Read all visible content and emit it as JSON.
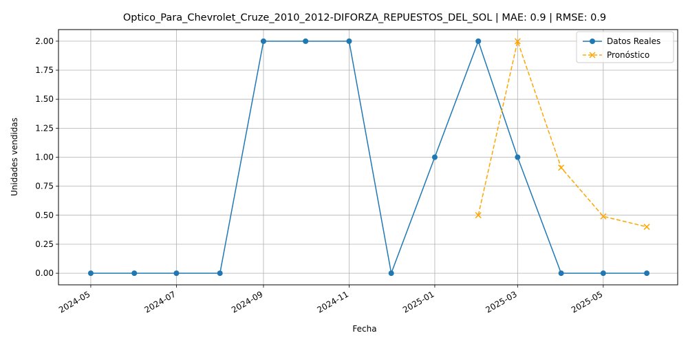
{
  "chart_data": {
    "type": "line",
    "title": "Optico_Para_Chevrolet_Cruze_2010_2012-DIFORZA_REPUESTOS_DEL_SOL | MAE: 0.9 | RMSE: 0.9",
    "xlabel": "Fecha",
    "ylabel": "Unidades vendidas",
    "ylim": [
      -0.1,
      2.1
    ],
    "xlim": [
      "2024-04-08",
      "2025-06-23"
    ],
    "grid": true,
    "legend_position": "top-right",
    "x_ticks": [
      "2024-05",
      "2024-07",
      "2024-09",
      "2024-11",
      "2025-01",
      "2025-03",
      "2025-05"
    ],
    "x_tick_dates": [
      "2024-05-01",
      "2024-07-01",
      "2024-09-01",
      "2024-11-01",
      "2025-01-01",
      "2025-03-01",
      "2025-05-01"
    ],
    "y_ticks": [
      "0.00",
      "0.25",
      "0.50",
      "0.75",
      "1.00",
      "1.25",
      "1.50",
      "1.75",
      "2.00"
    ],
    "y_tick_values": [
      0,
      0.25,
      0.5,
      0.75,
      1.0,
      1.25,
      1.5,
      1.75,
      2.0
    ],
    "series": [
      {
        "name": "Datos Reales",
        "color": "#1f77b4",
        "marker": "circle",
        "line_style": "solid",
        "x": [
          "2024-05-01",
          "2024-06-01",
          "2024-07-01",
          "2024-08-01",
          "2024-09-01",
          "2024-10-01",
          "2024-11-01",
          "2024-12-01",
          "2025-01-01",
          "2025-02-01",
          "2025-03-01",
          "2025-04-01",
          "2025-05-01",
          "2025-06-01"
        ],
        "y": [
          0,
          0,
          0,
          0,
          2,
          2,
          2,
          0,
          1,
          2,
          1,
          0,
          0,
          0
        ]
      },
      {
        "name": "Pronóstico",
        "color": "#ffa500",
        "marker": "x",
        "line_style": "dashed",
        "x": [
          "2025-02-01",
          "2025-03-01",
          "2025-04-01",
          "2025-05-01",
          "2025-06-01"
        ],
        "y": [
          0.5,
          2.0,
          0.91,
          0.49,
          0.4
        ]
      }
    ]
  }
}
